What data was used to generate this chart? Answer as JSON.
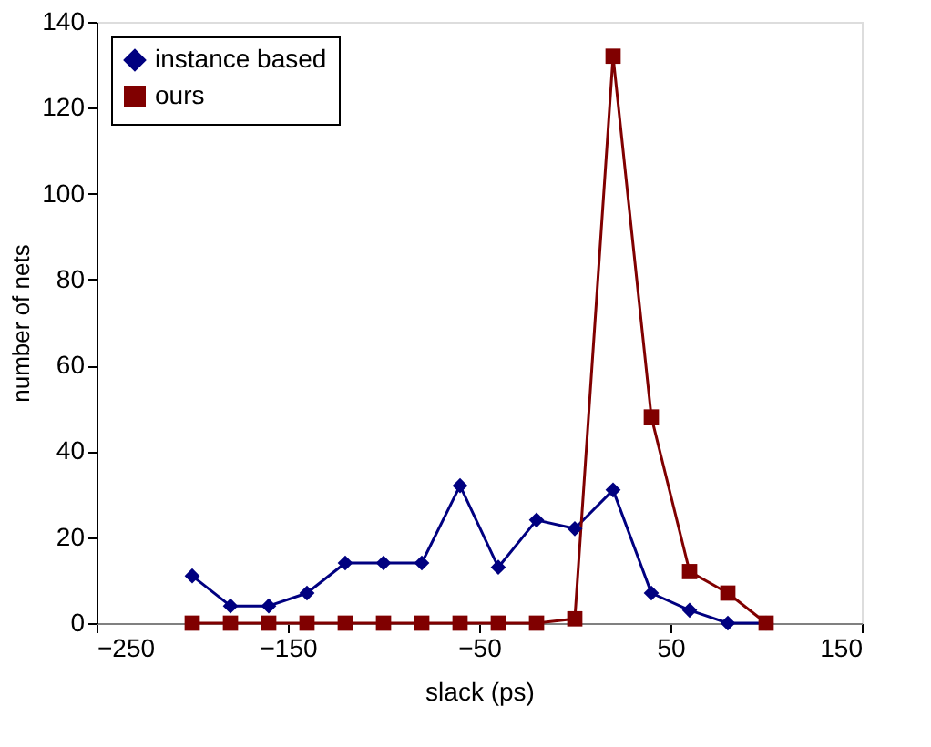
{
  "chart_data": {
    "type": "line",
    "xlabel": "slack (ps)",
    "ylabel": "number of nets",
    "x": [
      -200,
      -180,
      -160,
      -140,
      -120,
      -100,
      -80,
      -60,
      -40,
      -20,
      0,
      20,
      40,
      60,
      80,
      100
    ],
    "series": [
      {
        "name": "instance based",
        "color": "#000080",
        "marker": "diamond",
        "values": [
          11,
          4,
          4,
          7,
          14,
          14,
          14,
          32,
          13,
          24,
          22,
          31,
          7,
          3,
          0,
          0
        ]
      },
      {
        "name": "ours",
        "color": "#800000",
        "marker": "square",
        "values": [
          0,
          0,
          0,
          0,
          0,
          0,
          0,
          0,
          0,
          0,
          1,
          132,
          48,
          12,
          7,
          0
        ]
      }
    ],
    "xlim": [
      -250,
      150
    ],
    "xticks": [
      -250,
      -150,
      -50,
      50,
      150
    ],
    "ylim": [
      0,
      140
    ],
    "yticks": [
      0,
      20,
      40,
      60,
      80,
      100,
      120,
      140
    ],
    "grid": false,
    "legend": "top left",
    "line_style": "solid"
  }
}
